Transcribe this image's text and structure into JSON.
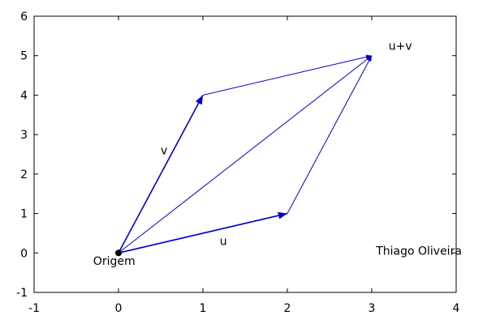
{
  "chart_data": {
    "type": "line",
    "title": "",
    "xlabel": "",
    "ylabel": "",
    "xlim": [
      -1,
      4
    ],
    "ylim": [
      -1,
      6
    ],
    "x_ticks": [
      -1,
      0,
      1,
      2,
      3,
      4
    ],
    "y_ticks": [
      -1,
      0,
      1,
      2,
      3,
      4,
      5,
      6
    ],
    "grid": false,
    "colors": {
      "vector": "#0000cc",
      "origin": "#000000"
    },
    "vectors": [
      {
        "name": "v",
        "from": [
          0,
          0
        ],
        "to": [
          1,
          4
        ],
        "thick": true
      },
      {
        "name": "u",
        "from": [
          0,
          0
        ],
        "to": [
          2,
          1
        ],
        "thick": true
      },
      {
        "name": "u+v",
        "from": [
          0,
          0
        ],
        "to": [
          3,
          5
        ],
        "thick": false
      },
      {
        "name": "",
        "from": [
          1,
          4
        ],
        "to": [
          3,
          5
        ],
        "thick": false
      },
      {
        "name": "",
        "from": [
          2,
          1
        ],
        "to": [
          3,
          5
        ],
        "thick": false
      }
    ],
    "points": [
      {
        "name": "origin",
        "x": 0,
        "y": 0
      }
    ],
    "annotations": [
      {
        "id": "v",
        "text": "v",
        "x": 0.5,
        "y": 2.5
      },
      {
        "id": "u",
        "text": "u",
        "x": 1.2,
        "y": 0.2
      },
      {
        "id": "uv",
        "text": "u+v",
        "x": 3.2,
        "y": 5.15
      },
      {
        "id": "origin",
        "text": "Origem",
        "x": -0.3,
        "y": -0.3
      },
      {
        "id": "author",
        "text": "Thiago Oliveira",
        "x": 3.05,
        "y": -0.05
      }
    ]
  }
}
